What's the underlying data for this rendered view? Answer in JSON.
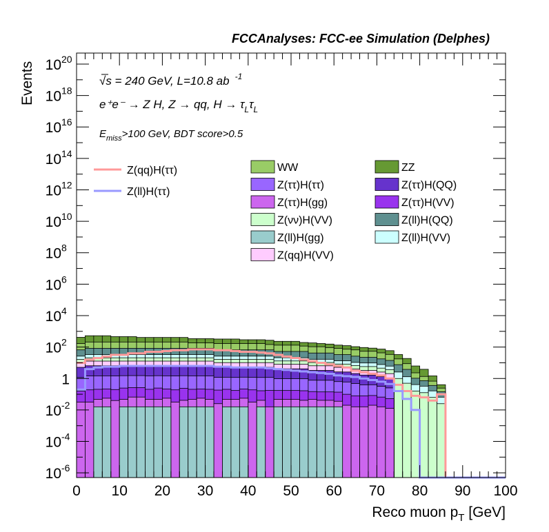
{
  "chart_data": {
    "type": "histogram-stacked-log",
    "title": "FCCAnalyses: FCC-ee Simulation (Delphes)",
    "xlabel": "Reco muon p_T [GeV]",
    "ylabel": "Events",
    "xlim": [
      0,
      100
    ],
    "ylim_log10": [
      -6.3,
      20.7
    ],
    "yscale": "log",
    "bin_width": 2,
    "x_ticks": [
      "0",
      "10",
      "20",
      "30",
      "40",
      "50",
      "60",
      "70",
      "80",
      "90",
      "100"
    ],
    "y_ticks": [
      {
        "base": "10",
        "exp": "-6"
      },
      {
        "base": "10",
        "exp": "-4"
      },
      {
        "base": "10",
        "exp": "-2"
      },
      {
        "base": "1",
        "exp": ""
      },
      {
        "base": "10",
        "exp": "2"
      },
      {
        "base": "10",
        "exp": "4"
      },
      {
        "base": "10",
        "exp": "6"
      },
      {
        "base": "10",
        "exp": "8"
      },
      {
        "base": "10",
        "exp": "10"
      },
      {
        "base": "10",
        "exp": "12"
      },
      {
        "base": "10",
        "exp": "14"
      },
      {
        "base": "10",
        "exp": "16"
      },
      {
        "base": "10",
        "exp": "18"
      },
      {
        "base": "10",
        "exp": "20"
      }
    ],
    "annotations": {
      "line1_sqrt": "√s = 240 GeV, L=10.8 ab",
      "line1_sup": "-1",
      "line2": "e⁺e⁻ → Z H, Z → qq, H → τ",
      "line2_sub1": "L",
      "line2_tau": "τ",
      "line2_sub2": "L",
      "line3_pre": "E",
      "line3_sub": "miss",
      "line3_post": ">100 GeV, BDT score>0.5"
    },
    "stack_order": [
      "Z(ll)H(gg)",
      "Z(ττ)H(gg)",
      "Z(ττ)H(VV)",
      "Z(ττ)H(ττ)",
      "Z(ττ)H(QQ)",
      "Z(qq)H(VV)",
      "Z(νν)H(VV)",
      "Z(ll)H(VV)",
      "Z(ll)H(QQ)",
      "WW",
      "ZZ"
    ],
    "series": [
      {
        "name": "Z(ll)H(gg)",
        "color": "#99cccc",
        "log10_values": [
          -6.3,
          -6.3,
          -1.8,
          -1.8,
          -6.3,
          -1.8,
          -1.8,
          -1.8,
          -1.8,
          -1.8,
          -1.8,
          -6.3,
          -1.8,
          -1.8,
          -1.8,
          -1.8,
          -6.3,
          -1.8,
          -1.8,
          -1.8,
          -6.3,
          -1.8,
          -6.3,
          -1.8,
          -1.8,
          -1.8,
          -1.8,
          -1.8,
          -1.8,
          -1.8,
          -1.8,
          -6.3,
          -6.3,
          -6.3,
          -6.3,
          -6.3,
          -6.3,
          -6.3,
          -6.3,
          -6.3,
          -6.3,
          -6.3,
          -6.3,
          -6.3,
          -6.3,
          -6.3,
          -6.3,
          -6.3,
          -6.3,
          -6.3
        ]
      },
      {
        "name": "Z(ττ)H(gg)",
        "color": "#cc66ee",
        "log10_values": [
          -1.5,
          -1.5,
          -1.5,
          -1.4,
          -1.4,
          -1.5,
          -1.3,
          -1.3,
          -1.5,
          -1.5,
          -1.4,
          -1.5,
          -1.6,
          -1.5,
          -1.4,
          -1.5,
          -1.6,
          -1.5,
          -1.5,
          -1.4,
          -1.5,
          -1.6,
          -1.8,
          -1.5,
          -1.5,
          -1.5,
          -1.6,
          -1.5,
          -1.6,
          -1.6,
          -1.7,
          -1.7,
          -1.8,
          -1.8,
          -1.7,
          -1.8,
          -1.9,
          -6.3,
          -6.3,
          -6.3,
          -6.3,
          -6.3,
          -6.3,
          -6.3,
          -6.3,
          -6.3,
          -6.3,
          -6.3,
          -6.3,
          -6.3
        ]
      },
      {
        "name": "Z(ττ)H(VV)",
        "color": "#9933ee",
        "log10_values": [
          -0.9,
          -0.8,
          -0.8,
          -0.8,
          -0.8,
          -0.7,
          -0.7,
          -0.7,
          -0.8,
          -0.7,
          -0.8,
          -0.8,
          -0.7,
          -0.8,
          -0.8,
          -0.8,
          -0.8,
          -0.8,
          -0.9,
          -0.8,
          -0.8,
          -0.9,
          -0.8,
          -0.9,
          -0.9,
          -0.9,
          -0.9,
          -1.0,
          -1.0,
          -1.0,
          -1.0,
          -1.1,
          -1.2,
          -1.2,
          -1.2,
          -1.3,
          -1.4,
          -6.3,
          -6.3,
          -6.3,
          -6.3,
          -6.3,
          -6.3,
          -6.3,
          -6.3,
          -6.3,
          -6.3,
          -6.3,
          -6.3,
          -6.3
        ]
      },
      {
        "name": "Z(ττ)H(ττ)",
        "color": "#9966ff",
        "log10_values": [
          0.0,
          0.1,
          0.1,
          0.1,
          0.1,
          0.1,
          0.1,
          0.1,
          0.1,
          0.1,
          0.1,
          0.1,
          0.1,
          0.1,
          0.1,
          0.1,
          0.0,
          0.0,
          0.0,
          0.0,
          0.0,
          0.0,
          0.0,
          -0.1,
          -0.1,
          -0.1,
          -0.1,
          -0.2,
          -0.2,
          -0.2,
          -0.3,
          -0.3,
          -0.4,
          -0.5,
          -0.5,
          -0.6,
          -0.7,
          -6.3,
          -6.3,
          -6.3,
          -6.3,
          -6.3,
          -6.3,
          -6.3,
          -6.3,
          -6.3,
          -6.3,
          -6.3,
          -6.3,
          -6.3
        ]
      },
      {
        "name": "Z(ττ)H(QQ)",
        "color": "#6633cc",
        "log10_values": [
          0.6,
          0.7,
          0.7,
          0.7,
          0.7,
          0.7,
          0.7,
          0.7,
          0.7,
          0.7,
          0.7,
          0.7,
          0.7,
          0.7,
          0.7,
          0.7,
          0.6,
          0.6,
          0.6,
          0.6,
          0.6,
          0.6,
          0.6,
          0.5,
          0.5,
          0.5,
          0.5,
          0.4,
          0.4,
          0.4,
          0.3,
          0.3,
          0.2,
          0.1,
          0.1,
          0.0,
          -0.1,
          -6.3,
          -6.3,
          -6.3,
          -6.3,
          -6.3,
          -6.3,
          -6.3,
          -6.3,
          -6.3,
          -6.3,
          -6.3,
          -6.3,
          -6.3
        ]
      },
      {
        "name": "Z(qq)H(VV)",
        "color": "#ffccff",
        "log10_values": [
          0.7,
          0.8,
          0.8,
          0.8,
          0.8,
          0.8,
          0.8,
          0.8,
          0.8,
          0.8,
          0.8,
          0.8,
          0.8,
          0.8,
          0.8,
          0.8,
          0.7,
          0.7,
          0.7,
          0.7,
          0.7,
          0.7,
          0.7,
          0.6,
          0.6,
          0.6,
          0.6,
          0.5,
          0.5,
          0.5,
          0.4,
          0.4,
          0.3,
          0.2,
          0.2,
          0.1,
          0.0,
          -6.3,
          -6.3,
          -6.3,
          -6.3,
          -6.3,
          -6.3,
          -6.3,
          -6.3,
          -6.3,
          -6.3,
          -6.3,
          -6.3,
          -6.3
        ]
      },
      {
        "name": "Z(νν)H(VV)",
        "color": "#ccffcc",
        "log10_values": [
          0.8,
          0.9,
          0.9,
          0.9,
          0.9,
          0.9,
          0.9,
          0.9,
          0.9,
          0.9,
          0.9,
          0.9,
          0.9,
          0.9,
          0.9,
          0.9,
          0.8,
          0.8,
          0.8,
          0.8,
          0.8,
          0.8,
          0.8,
          0.7,
          0.7,
          0.7,
          0.7,
          0.6,
          0.6,
          0.6,
          0.5,
          0.5,
          0.4,
          0.4,
          0.4,
          0.3,
          0.2,
          0.0,
          -0.3,
          -0.8,
          -0.9,
          -1.2,
          -1.6,
          -6.3,
          -6.3,
          -6.3,
          -6.3,
          -6.3,
          -6.3,
          -6.3
        ]
      },
      {
        "name": "Z(ll)H(VV)",
        "color": "#ccffff",
        "log10_values": [
          1.0,
          1.1,
          1.1,
          1.1,
          1.1,
          1.1,
          1.1,
          1.1,
          1.1,
          1.1,
          1.1,
          1.1,
          1.1,
          1.1,
          1.1,
          1.1,
          1.0,
          1.0,
          1.0,
          1.0,
          1.0,
          1.0,
          1.0,
          0.9,
          0.9,
          0.9,
          0.9,
          0.8,
          0.8,
          0.8,
          0.7,
          0.7,
          0.6,
          0.6,
          0.6,
          0.5,
          0.4,
          0.2,
          -0.1,
          -0.6,
          -0.7,
          -1.0,
          -1.4,
          -6.3,
          -6.3,
          -6.3,
          -6.3,
          -6.3,
          -6.3,
          -6.3
        ]
      },
      {
        "name": "Z(ll)H(QQ)",
        "color": "#5f9090",
        "log10_values": [
          1.6,
          1.7,
          1.7,
          1.7,
          1.7,
          1.7,
          1.7,
          1.7,
          1.7,
          1.7,
          1.7,
          1.7,
          1.7,
          1.7,
          1.7,
          1.7,
          1.6,
          1.6,
          1.6,
          1.6,
          1.6,
          1.6,
          1.6,
          1.5,
          1.5,
          1.5,
          1.5,
          1.4,
          1.4,
          1.4,
          1.3,
          1.3,
          1.2,
          1.1,
          1.1,
          1.0,
          0.9,
          0.7,
          0.4,
          -0.2,
          -0.4,
          -0.7,
          -1.1,
          -6.3,
          -6.3,
          -6.3,
          -6.3,
          -6.3,
          -6.3,
          -6.3
        ]
      },
      {
        "name": "WW",
        "color": "#99cc66",
        "log10_values": [
          2.0,
          2.1,
          2.1,
          2.1,
          2.1,
          2.1,
          2.1,
          2.1,
          2.1,
          2.1,
          2.1,
          2.1,
          2.1,
          2.0,
          2.0,
          2.0,
          2.0,
          2.0,
          2.0,
          2.0,
          2.0,
          2.0,
          1.9,
          1.9,
          1.9,
          1.9,
          1.8,
          1.8,
          1.8,
          1.7,
          1.7,
          1.6,
          1.6,
          1.5,
          1.5,
          1.4,
          1.3,
          1.0,
          0.7,
          0.1,
          -0.2,
          -0.5,
          -1.0,
          -6.3,
          -6.3,
          -6.3,
          -6.3,
          -6.3,
          -6.3,
          -6.3
        ]
      },
      {
        "name": "ZZ",
        "color": "#669933",
        "log10_values": [
          2.4,
          2.5,
          2.5,
          2.5,
          2.4,
          2.4,
          2.4,
          2.3,
          2.3,
          2.3,
          2.3,
          2.3,
          2.3,
          2.2,
          2.2,
          2.2,
          2.2,
          2.2,
          2.2,
          2.1,
          2.1,
          2.1,
          2.1,
          2.0,
          2.0,
          2.0,
          1.9,
          1.9,
          1.8,
          1.8,
          1.7,
          1.7,
          1.6,
          1.6,
          1.5,
          1.5,
          1.4,
          1.2,
          1.0,
          0.6,
          0.4,
          -0.1,
          -0.8,
          -6.3,
          -6.3,
          -6.3,
          -6.3,
          -6.3,
          -6.3,
          -6.3
        ]
      }
    ],
    "signal_lines": [
      {
        "name": "Z(qq)H(ττ)",
        "color": "#ff9999",
        "log10_values": [
          1.0,
          1.2,
          1.3,
          1.4,
          1.5,
          1.5,
          1.6,
          1.6,
          1.7,
          1.7,
          1.75,
          1.8,
          1.8,
          1.85,
          1.85,
          1.85,
          1.8,
          1.8,
          1.75,
          1.7,
          1.7,
          1.65,
          1.6,
          1.5,
          1.4,
          1.3,
          1.2,
          1.1,
          1.0,
          0.9,
          0.8,
          0.7,
          0.5,
          0.4,
          0.3,
          0.2,
          0.0,
          -0.4,
          -0.8,
          -1.1,
          -1.2,
          -1.4,
          -1.0,
          -6.3,
          -6.3,
          -6.3,
          -6.3,
          -6.3,
          -6.3,
          -6.3
        ]
      },
      {
        "name": "Z(ll)H(ττ)",
        "color": "#9999ff",
        "log10_values": [
          -0.7,
          0.6,
          0.7,
          0.75,
          0.75,
          0.8,
          0.8,
          0.8,
          0.8,
          0.8,
          0.8,
          0.8,
          0.8,
          0.8,
          0.8,
          0.8,
          0.75,
          0.75,
          0.7,
          0.7,
          0.7,
          0.7,
          0.65,
          0.6,
          0.55,
          0.5,
          0.45,
          0.4,
          0.35,
          0.3,
          0.2,
          0.15,
          0.1,
          0.0,
          -0.1,
          -0.2,
          -0.35,
          -0.8,
          -1.3,
          -2.0,
          -6.3,
          -6.3,
          -6.3,
          -6.3,
          -6.3,
          -6.3,
          -6.3,
          -6.3,
          -6.3,
          -6.3
        ]
      }
    ],
    "legend_placement": "top-center",
    "grid": false
  }
}
